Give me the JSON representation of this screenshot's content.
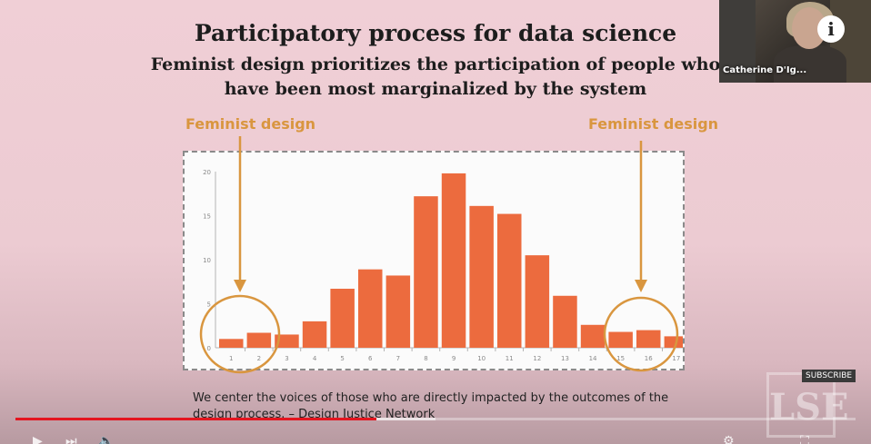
{
  "slide": {
    "title": "Participatory process for data science",
    "subtitle_line1": "Feminist design prioritizes the participation of people who",
    "subtitle_line2": "have been most marginalized by the system",
    "annotation_left": "Feminist design",
    "annotation_right": "Feminist design",
    "caption_line1": "We center the voices of those who are directly impacted by the outcomes of the",
    "caption_line2": "design process. – Design Justice Network"
  },
  "chart_data": {
    "type": "bar",
    "categories": [
      "1",
      "2",
      "3",
      "4",
      "5",
      "6",
      "7",
      "8",
      "9",
      "10",
      "11",
      "12",
      "13",
      "14",
      "15",
      "16",
      "17"
    ],
    "values": [
      1,
      1.7,
      1.5,
      3,
      6.7,
      8.9,
      8.2,
      17.2,
      19.8,
      16.1,
      15.2,
      10.5,
      5.9,
      2.6,
      1.8,
      2,
      1.3
    ],
    "ylim": [
      0,
      20
    ],
    "yticks": [
      "0",
      "5",
      "10",
      "15",
      "20"
    ],
    "grid": false,
    "bar_color": "#ec6b3e",
    "highlight_color": "#d9963f",
    "highlighted_categories": [
      "1",
      "2",
      "16",
      "17"
    ]
  },
  "video": {
    "presenter_name": "Catherine D'Ig...",
    "subscribe_label": "SUBSCRIBE",
    "watermark": "LSE",
    "info_icon": "i",
    "progress": 0.43,
    "buffered": 0.5
  }
}
